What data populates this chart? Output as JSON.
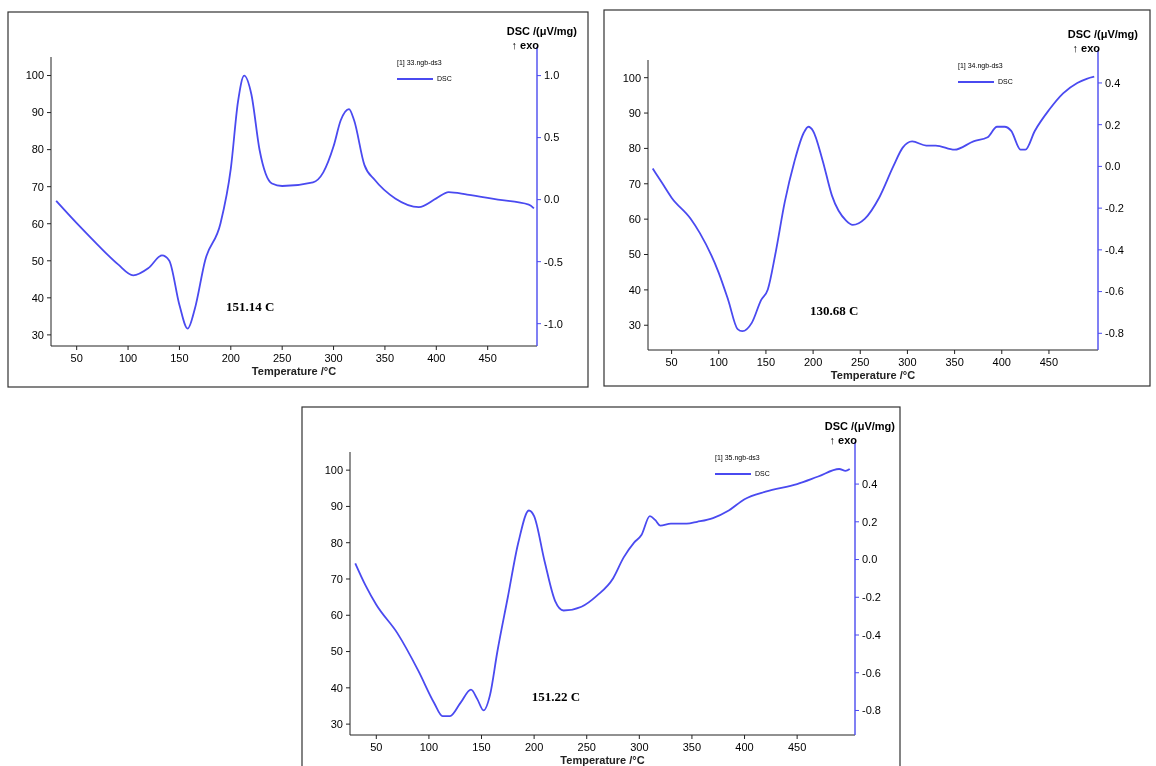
{
  "chart_data": [
    {
      "type": "line",
      "xlabel": "Temperature /°C",
      "y2label": "DSC /(μV/mg)",
      "legend_title": "[1] 33.ngb-ds3",
      "legend": "top right",
      "grid": false,
      "marker": "none",
      "line_style": "solid",
      "xlim": [
        25,
        498
      ],
      "xticks": [
        50,
        100,
        150,
        200,
        250,
        300,
        350,
        400,
        450
      ],
      "ylim": [
        27,
        105
      ],
      "yticks": [
        30,
        40,
        50,
        60,
        70,
        80,
        90,
        100
      ],
      "y2lim": [
        -1.18,
        1.15
      ],
      "y2ticks": [
        {
          "value": 1,
          "label": "1.0"
        },
        {
          "value": 0.5,
          "label": "0.5"
        },
        {
          "value": 0,
          "label": "0.0"
        },
        {
          "value": -0.5,
          "label": "-0.5"
        },
        {
          "value": -1,
          "label": "-1.0"
        }
      ],
      "annotations": [
        "↑ exo",
        "151.14 C"
      ],
      "series": [
        {
          "name": "DSC",
          "color": "#4a4af0",
          "axis": "y2",
          "x": [
            30,
            50,
            70,
            90,
            105,
            120,
            133,
            140,
            150,
            158,
            165,
            175,
            190,
            200,
            207,
            213,
            220,
            228,
            240,
            250,
            280,
            290,
            300,
            307,
            315,
            320,
            330,
            340,
            360,
            383,
            400,
            412,
            430,
            460,
            490,
            495
          ],
          "values": [
            -0.01,
            -0.19,
            -0.36,
            -0.52,
            -0.61,
            -0.55,
            -0.45,
            -0.49,
            -0.85,
            -1.04,
            -0.88,
            -0.49,
            -0.19,
            0.25,
            0.79,
            1.0,
            0.85,
            0.4,
            0.13,
            0.11,
            0.14,
            0.22,
            0.43,
            0.64,
            0.73,
            0.64,
            0.28,
            0.16,
            0.01,
            -0.06,
            0.01,
            0.06,
            0.04,
            0,
            -0.04,
            -0.07
          ]
        }
      ]
    },
    {
      "type": "line",
      "xlabel": "Temperature /°C",
      "y2label": "DSC /(μV/mg)",
      "legend_title": "[1] 34.ngb-ds3",
      "legend": "top right",
      "grid": false,
      "marker": "none",
      "line_style": "solid",
      "xlim": [
        25,
        502
      ],
      "xticks": [
        50,
        100,
        150,
        200,
        250,
        300,
        350,
        400,
        450
      ],
      "ylim": [
        23,
        105
      ],
      "yticks": [
        30,
        40,
        50,
        60,
        70,
        80,
        90,
        100
      ],
      "y2lim": [
        -0.88,
        0.51
      ],
      "y2ticks": [
        {
          "value": 0.4,
          "label": "0.4"
        },
        {
          "value": 0.2,
          "label": "0.2"
        },
        {
          "value": 0,
          "label": "0.0"
        },
        {
          "value": -0.2,
          "label": "-0.2"
        },
        {
          "value": -0.4,
          "label": "-0.4"
        },
        {
          "value": -0.6,
          "label": "-0.6"
        },
        {
          "value": -0.8,
          "label": "-0.8"
        }
      ],
      "annotations": [
        "↑ exo",
        "130.68 C"
      ],
      "series": [
        {
          "name": "DSC",
          "color": "#4a4af0",
          "axis": "y2",
          "x": [
            30,
            40,
            50,
            70,
            80,
            100,
            110,
            120,
            125,
            135,
            145,
            152,
            160,
            170,
            180,
            190,
            195,
            200,
            210,
            220,
            235,
            242,
            255,
            270,
            285,
            295,
            305,
            320,
            330,
            350,
            370,
            385,
            395,
            403,
            410,
            420,
            425,
            435,
            450,
            465,
            480,
            490,
            498
          ],
          "values": [
            -0.01,
            -0.08,
            -0.15,
            -0.25,
            -0.32,
            -0.51,
            -0.64,
            -0.78,
            -0.79,
            -0.75,
            -0.64,
            -0.59,
            -0.42,
            -0.17,
            0.02,
            0.16,
            0.19,
            0.17,
            0.03,
            -0.14,
            -0.26,
            -0.28,
            -0.25,
            -0.15,
            0,
            0.09,
            0.12,
            0.1,
            0.1,
            0.08,
            0.12,
            0.14,
            0.19,
            0.19,
            0.17,
            0.08,
            0.08,
            0.17,
            0.27,
            0.35,
            0.4,
            0.42,
            0.43
          ]
        }
      ]
    },
    {
      "type": "line",
      "xlabel": "Temperature /°C",
      "y2label": "DSC /(μV/mg)",
      "legend_title": "[1] 35.ngb-ds3",
      "legend": "top right",
      "grid": false,
      "marker": "none",
      "line_style": "solid",
      "xlim": [
        25,
        505
      ],
      "xticks": [
        50,
        100,
        150,
        200,
        250,
        300,
        350,
        400,
        450
      ],
      "ylim": [
        27,
        105
      ],
      "yticks": [
        30,
        40,
        50,
        60,
        70,
        80,
        90,
        100
      ],
      "y2lim": [
        -0.93,
        0.57
      ],
      "y2ticks": [
        {
          "value": 0.4,
          "label": "0.4"
        },
        {
          "value": 0.2,
          "label": "0.2"
        },
        {
          "value": 0,
          "label": "0.0"
        },
        {
          "value": -0.2,
          "label": "-0.2"
        },
        {
          "value": -0.4,
          "label": "-0.4"
        },
        {
          "value": -0.6,
          "label": "-0.6"
        },
        {
          "value": -0.8,
          "label": "-0.8"
        }
      ],
      "annotations": [
        "↑ exo",
        "151.22 C"
      ],
      "series": [
        {
          "name": "DSC",
          "color": "#4a4af0",
          "axis": "y2",
          "x": [
            30,
            40,
            50,
            70,
            90,
            105,
            113,
            120,
            130,
            140,
            146,
            152,
            158,
            165,
            175,
            185,
            195,
            200,
            210,
            220,
            228,
            245,
            260,
            275,
            285,
            295,
            302,
            310,
            315,
            320,
            330,
            345,
            355,
            370,
            385,
            400,
            420,
            450,
            470,
            490,
            496,
            500
          ],
          "values": [
            -0.02,
            -0.14,
            -0.24,
            -0.39,
            -0.59,
            -0.76,
            -0.83,
            -0.83,
            -0.76,
            -0.69,
            -0.74,
            -0.8,
            -0.72,
            -0.49,
            -0.2,
            0.09,
            0.26,
            0.23,
            -0.01,
            -0.22,
            -0.27,
            -0.25,
            -0.19,
            -0.1,
            0.01,
            0.09,
            0.13,
            0.23,
            0.21,
            0.18,
            0.19,
            0.19,
            0.2,
            0.22,
            0.26,
            0.32,
            0.36,
            0.4,
            0.44,
            0.48,
            0.47,
            0.48
          ]
        }
      ]
    }
  ]
}
